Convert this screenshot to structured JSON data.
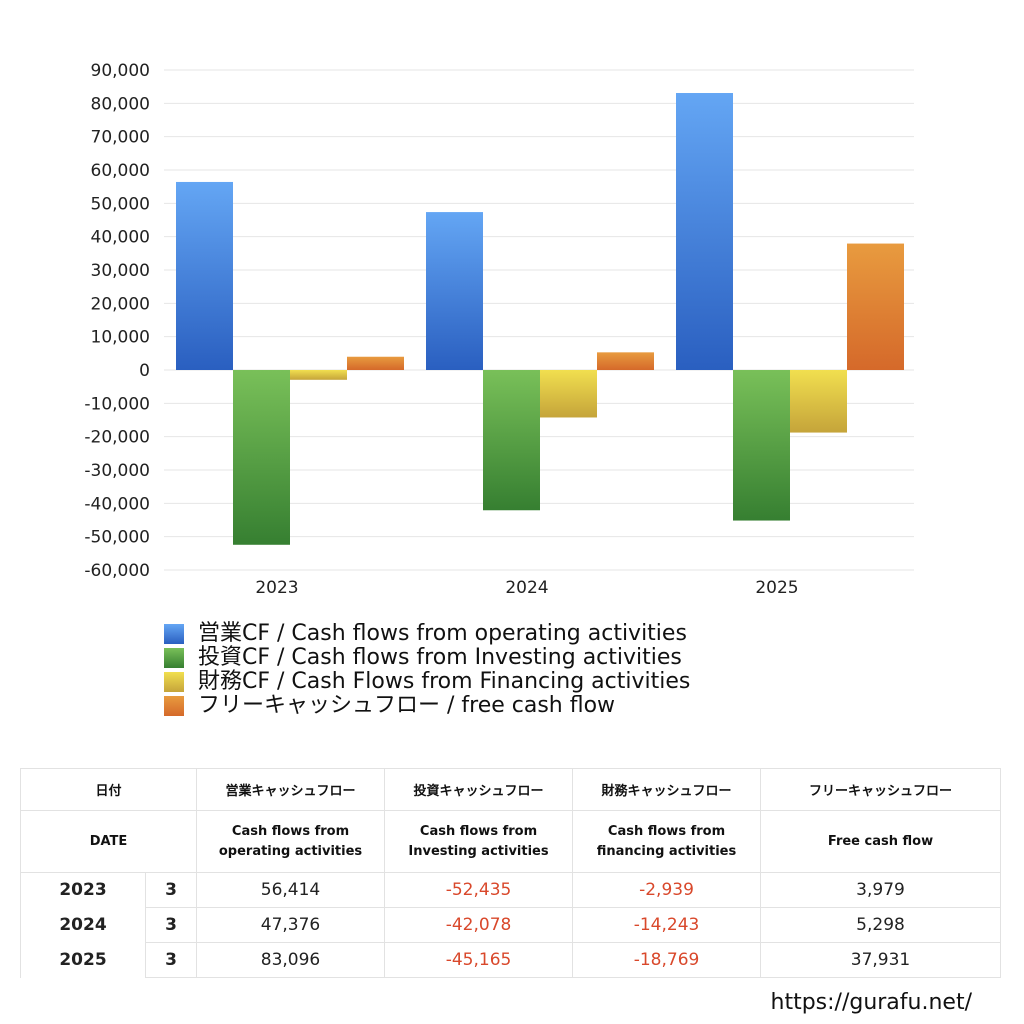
{
  "chart_data": {
    "type": "bar",
    "categories": [
      "2023",
      "2024",
      "2025"
    ],
    "series": [
      {
        "name": "営業CF / Cash flows from operating activities",
        "values": [
          56414,
          47376,
          83096
        ],
        "color_top": "#64a6f4",
        "color_bottom": "#2a5fc0"
      },
      {
        "name": "投資CF / Cash flows from Investing activities",
        "values": [
          -52435,
          -42078,
          -45165
        ],
        "color_top": "#79c059",
        "color_bottom": "#367f31"
      },
      {
        "name": "財務CF / Cash Flows from Financing activities",
        "values": [
          -2939,
          -14243,
          -18769
        ],
        "color_top": "#f1df4f",
        "color_bottom": "#c5a43a"
      },
      {
        "name": "フリーキャッシュフロー / free cash flow",
        "values": [
          3979,
          5298,
          37931
        ],
        "color_top": "#e89b3f",
        "color_bottom": "#d5692a"
      }
    ],
    "ylim": [
      -60000,
      90000
    ],
    "yticks": [
      "90,000",
      "80,000",
      "70,000",
      "60,000",
      "50,000",
      "40,000",
      "30,000",
      "20,000",
      "10,000",
      "0",
      "-10,000",
      "-20,000",
      "-30,000",
      "-40,000",
      "-50,000",
      "-60,000"
    ],
    "grid": true,
    "legend_position": "bottom"
  },
  "table": {
    "header_date_jp": "日付",
    "header_date_en": "DATE",
    "headers_jp": [
      "営業キャッシュフロー",
      "投資キャッシュフロー",
      "財務キャッシュフロー",
      "フリーキャッシュフロー"
    ],
    "headers_en_line1": [
      "Cash flows from",
      "Cash flows from",
      "Cash flows from",
      "Free cash flow"
    ],
    "headers_en_line2": [
      "operating activities",
      "Investing activities",
      "financing activities",
      ""
    ],
    "rows": [
      {
        "year": "2023",
        "month": "3",
        "values": [
          "56,414",
          "-52,435",
          "-2,939",
          "3,979"
        ]
      },
      {
        "year": "2024",
        "month": "3",
        "values": [
          "47,376",
          "-42,078",
          "-14,243",
          "5,298"
        ]
      },
      {
        "year": "2025",
        "month": "3",
        "values": [
          "83,096",
          "-45,165",
          "-18,769",
          "37,931"
        ]
      }
    ],
    "negative_color": "#d9482b"
  },
  "site_url": "https://gurafu.net/"
}
